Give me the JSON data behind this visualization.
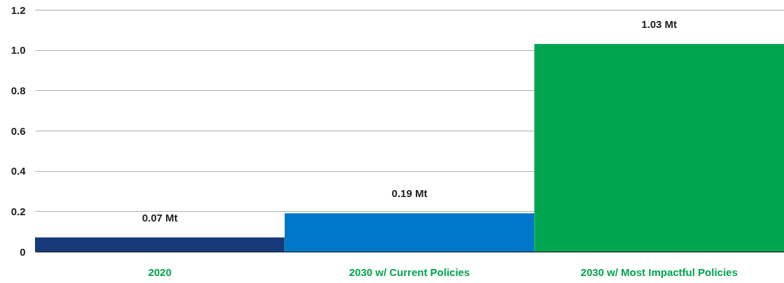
{
  "chart_data": {
    "type": "bar",
    "categories": [
      "2020",
      "2030 w/ Current Policies",
      "2030 w/ Most Impactful Policies"
    ],
    "values": [
      0.07,
      0.19,
      1.03
    ],
    "value_labels": [
      "0.07 Mt",
      "0.19 Mt",
      "1.03 Mt"
    ],
    "colors": [
      "#173a7a",
      "#0077c8",
      "#00a64f"
    ],
    "ylim": [
      0,
      1.2
    ],
    "yticks": [
      0,
      0.2,
      0.4,
      0.6,
      0.8,
      {
        "value": 1,
        "label": "1.0"
      },
      1.2
    ],
    "grid": "y"
  }
}
